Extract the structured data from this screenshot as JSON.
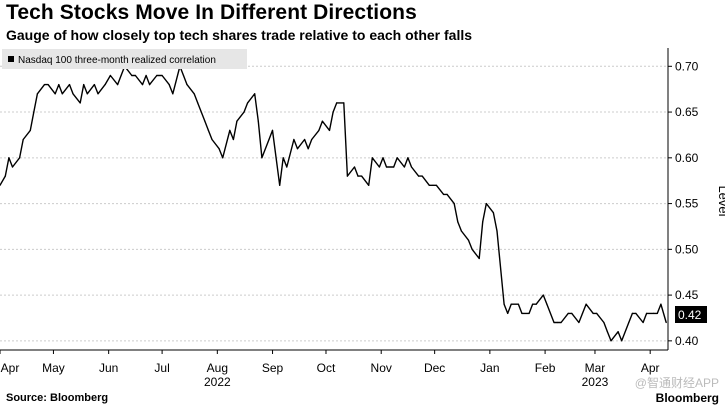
{
  "header": {
    "title": "Tech Stocks Move In Different Directions",
    "subtitle": "Gauge of how closely top tech shares trade relative to each other falls"
  },
  "footer": {
    "source": "Source: Bloomberg",
    "watermark": "@智通财经APP",
    "logo": "Bloomberg"
  },
  "colors": {
    "line": "#000000",
    "grid": "#cccccc",
    "legend_bg": "#e6e6e6",
    "callout_bg": "#000000",
    "callout_text": "#ffffff"
  },
  "chart_data": {
    "type": "line",
    "title": "Tech Stocks Move In Different Directions",
    "subtitle": "Gauge of how closely top tech shares trade relative to each other falls",
    "ylabel": "Level",
    "ylim": [
      0.39,
      0.72
    ],
    "yticks": [
      0.4,
      0.45,
      0.5,
      0.55,
      0.6,
      0.65,
      0.7
    ],
    "ytick_labels": [
      "0.40",
      "0.45",
      "0.50",
      "0.55",
      "0.60",
      "0.65",
      "0.70"
    ],
    "xlim": [
      "2022-04-01",
      "2023-04-11"
    ],
    "xticks": [
      {
        "date": "2022-04-01",
        "label": "Apr"
      },
      {
        "date": "2022-05-01",
        "label": "May"
      },
      {
        "date": "2022-06-01",
        "label": "Jun"
      },
      {
        "date": "2022-07-01",
        "label": "Jul"
      },
      {
        "date": "2022-08-01",
        "label": "Aug"
      },
      {
        "date": "2022-09-01",
        "label": "Sep"
      },
      {
        "date": "2022-10-01",
        "label": "Oct"
      },
      {
        "date": "2022-11-01",
        "label": "Nov"
      },
      {
        "date": "2022-12-01",
        "label": "Dec"
      },
      {
        "date": "2023-01-01",
        "label": "Jan"
      },
      {
        "date": "2023-02-01",
        "label": "Feb"
      },
      {
        "date": "2023-03-01",
        "label": "Mar"
      },
      {
        "date": "2023-04-01",
        "label": "Apr"
      }
    ],
    "year_labels": [
      {
        "date": "2022-08-01",
        "label": "2022"
      },
      {
        "date": "2023-03-01",
        "label": "2023"
      }
    ],
    "grid": true,
    "legend": "top-left",
    "last_value_label": "0.42",
    "series": [
      {
        "name": "Nasdaq 100 three-month realized correlation",
        "x": [
          "2022-04-01",
          "2022-04-04",
          "2022-04-06",
          "2022-04-08",
          "2022-04-12",
          "2022-04-14",
          "2022-04-18",
          "2022-04-20",
          "2022-04-22",
          "2022-04-26",
          "2022-04-28",
          "2022-05-02",
          "2022-05-04",
          "2022-05-06",
          "2022-05-10",
          "2022-05-12",
          "2022-05-16",
          "2022-05-18",
          "2022-05-20",
          "2022-05-24",
          "2022-05-26",
          "2022-05-30",
          "2022-06-02",
          "2022-06-06",
          "2022-06-08",
          "2022-06-10",
          "2022-06-14",
          "2022-06-16",
          "2022-06-20",
          "2022-06-22",
          "2022-06-24",
          "2022-06-28",
          "2022-07-01",
          "2022-07-05",
          "2022-07-07",
          "2022-07-11",
          "2022-07-13",
          "2022-07-15",
          "2022-07-19",
          "2022-07-21",
          "2022-07-25",
          "2022-07-27",
          "2022-07-29",
          "2022-08-02",
          "2022-08-04",
          "2022-08-08",
          "2022-08-10",
          "2022-08-12",
          "2022-08-16",
          "2022-08-18",
          "2022-08-22",
          "2022-08-24",
          "2022-08-26",
          "2022-08-30",
          "2022-09-01",
          "2022-09-05",
          "2022-09-07",
          "2022-09-09",
          "2022-09-13",
          "2022-09-15",
          "2022-09-19",
          "2022-09-21",
          "2022-09-23",
          "2022-09-27",
          "2022-09-29",
          "2022-10-03",
          "2022-10-05",
          "2022-10-07",
          "2022-10-11",
          "2022-10-13",
          "2022-10-17",
          "2022-10-19",
          "2022-10-21",
          "2022-10-25",
          "2022-10-27",
          "2022-10-31",
          "2022-11-02",
          "2022-11-04",
          "2022-11-08",
          "2022-11-10",
          "2022-11-14",
          "2022-11-16",
          "2022-11-18",
          "2022-11-22",
          "2022-11-24",
          "2022-11-28",
          "2022-11-30",
          "2022-12-02",
          "2022-12-06",
          "2022-12-08",
          "2022-12-12",
          "2022-12-14",
          "2022-12-16",
          "2022-12-20",
          "2022-12-22",
          "2022-12-26",
          "2022-12-28",
          "2022-12-30",
          "2023-01-03",
          "2023-01-05",
          "2023-01-09",
          "2023-01-11",
          "2023-01-13",
          "2023-01-17",
          "2023-01-19",
          "2023-01-23",
          "2023-01-25",
          "2023-01-27",
          "2023-01-31",
          "2023-02-02",
          "2023-02-06",
          "2023-02-08",
          "2023-02-10",
          "2023-02-14",
          "2023-02-16",
          "2023-02-20",
          "2023-02-22",
          "2023-02-24",
          "2023-02-28",
          "2023-03-02",
          "2023-03-06",
          "2023-03-08",
          "2023-03-10",
          "2023-03-14",
          "2023-03-16",
          "2023-03-20",
          "2023-03-22",
          "2023-03-24",
          "2023-03-28",
          "2023-03-30",
          "2023-04-03",
          "2023-04-05",
          "2023-04-07",
          "2023-04-10"
        ],
        "values": [
          0.57,
          0.58,
          0.6,
          0.59,
          0.6,
          0.62,
          0.63,
          0.65,
          0.67,
          0.68,
          0.68,
          0.67,
          0.68,
          0.67,
          0.68,
          0.67,
          0.66,
          0.68,
          0.67,
          0.68,
          0.67,
          0.68,
          0.69,
          0.68,
          0.69,
          0.7,
          0.69,
          0.69,
          0.68,
          0.69,
          0.68,
          0.69,
          0.69,
          0.68,
          0.67,
          0.7,
          0.69,
          0.68,
          0.67,
          0.66,
          0.64,
          0.63,
          0.62,
          0.61,
          0.6,
          0.63,
          0.62,
          0.64,
          0.65,
          0.66,
          0.67,
          0.64,
          0.6,
          0.62,
          0.63,
          0.57,
          0.6,
          0.59,
          0.62,
          0.61,
          0.62,
          0.61,
          0.62,
          0.63,
          0.64,
          0.63,
          0.65,
          0.66,
          0.66,
          0.58,
          0.59,
          0.58,
          0.58,
          0.57,
          0.6,
          0.59,
          0.6,
          0.59,
          0.59,
          0.6,
          0.59,
          0.6,
          0.59,
          0.58,
          0.58,
          0.57,
          0.57,
          0.57,
          0.56,
          0.56,
          0.55,
          0.53,
          0.52,
          0.51,
          0.5,
          0.49,
          0.53,
          0.55,
          0.54,
          0.52,
          0.44,
          0.43,
          0.44,
          0.44,
          0.43,
          0.43,
          0.44,
          0.44,
          0.45,
          0.44,
          0.42,
          0.42,
          0.42,
          0.43,
          0.43,
          0.42,
          0.43,
          0.44,
          0.43,
          0.43,
          0.42,
          0.41,
          0.4,
          0.41,
          0.4,
          0.42,
          0.43,
          0.43,
          0.42,
          0.43,
          0.43,
          0.43,
          0.44,
          0.42
        ]
      }
    ]
  }
}
